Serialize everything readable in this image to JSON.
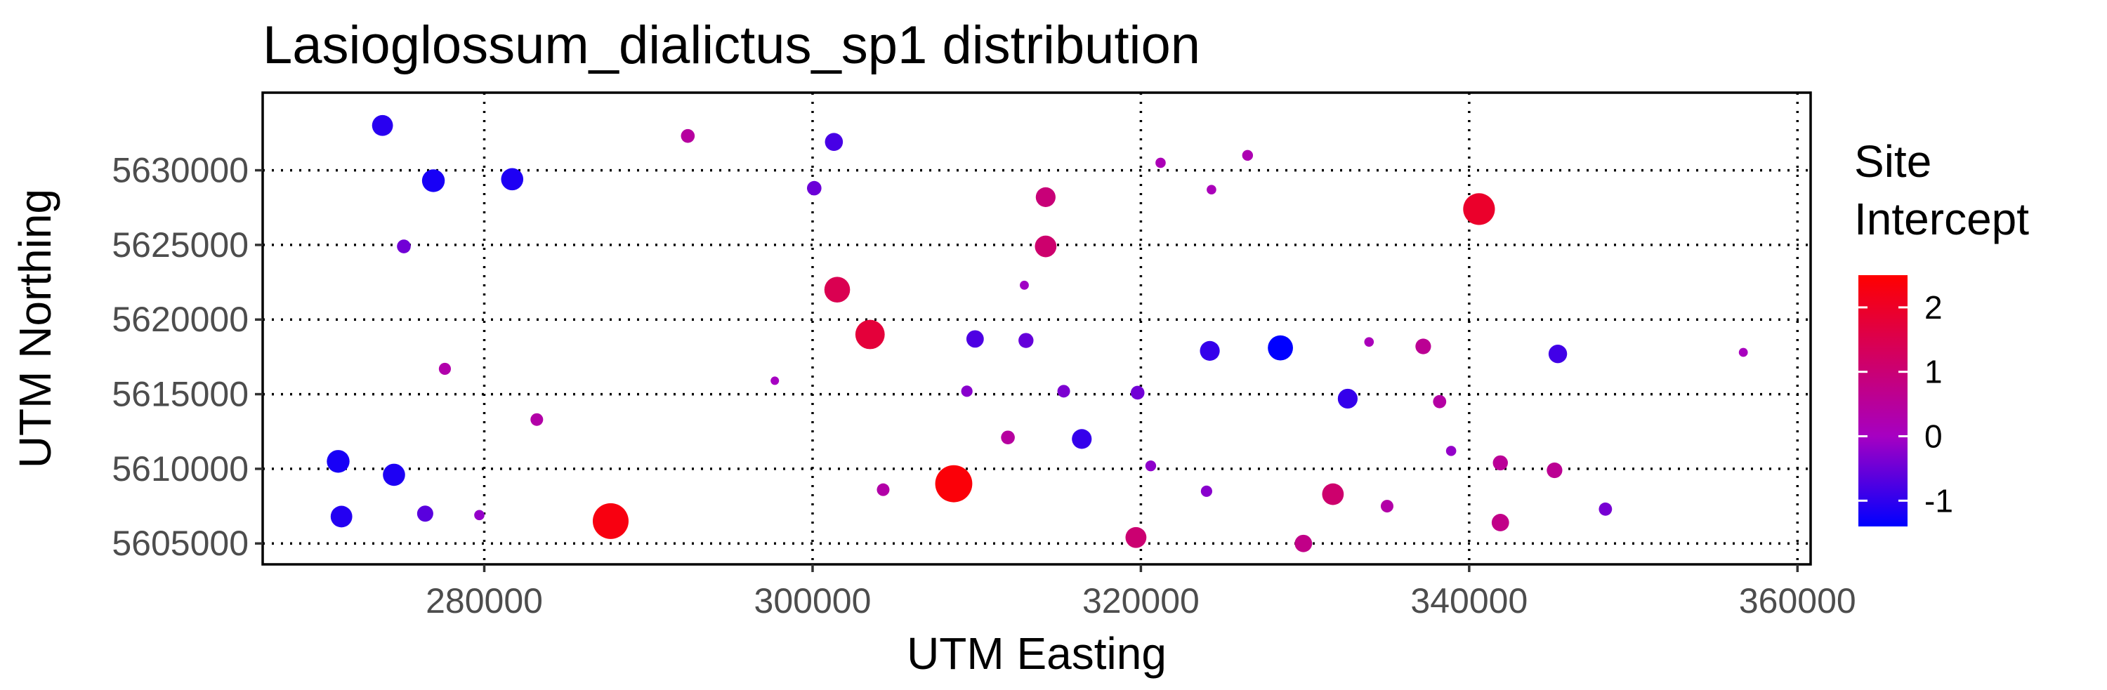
{
  "chart_data": {
    "type": "scatter",
    "title": "Lasioglossum_dialictus_sp1 distribution",
    "xlabel": "UTM Easting",
    "ylabel": "UTM Northing",
    "xlim": [
      266500,
      360800
    ],
    "ylim": [
      5603600,
      5635200
    ],
    "x_ticks": [
      280000,
      300000,
      320000,
      340000,
      360000
    ],
    "y_ticks": [
      5605000,
      5610000,
      5615000,
      5620000,
      5625000,
      5630000
    ],
    "x_tick_labels": [
      "280000",
      "300000",
      "320000",
      "340000",
      "360000"
    ],
    "y_tick_labels": [
      "5605000",
      "5610000",
      "5615000",
      "5620000",
      "5625000",
      "5630000"
    ],
    "grid": true,
    "legend": {
      "title_lines": [
        "Site",
        "Intercept"
      ],
      "position": "right",
      "colors": {
        "low": "#0000ff",
        "mid": "#a600c2",
        "high": "#ff0000"
      },
      "range": [
        -1.4,
        2.5
      ],
      "ticks": [
        2,
        1,
        0,
        -1
      ],
      "tick_labels": [
        "2",
        "1",
        "0",
        "-1"
      ]
    },
    "size_note": "point size scales with |site intercept|",
    "points": [
      {
        "x": 273800,
        "y": 5633000,
        "value": -1.05
      },
      {
        "x": 276900,
        "y": 5629300,
        "value": -1.2
      },
      {
        "x": 281700,
        "y": 5629400,
        "value": -1.15
      },
      {
        "x": 292400,
        "y": 5632300,
        "value": 0.45
      },
      {
        "x": 301300,
        "y": 5631900,
        "value": -0.8
      },
      {
        "x": 300100,
        "y": 5628800,
        "value": -0.5
      },
      {
        "x": 321200,
        "y": 5630500,
        "value": 0.15
      },
      {
        "x": 326500,
        "y": 5631000,
        "value": 0.2
      },
      {
        "x": 324300,
        "y": 5628700,
        "value": 0.1
      },
      {
        "x": 314200,
        "y": 5628200,
        "value": 0.95
      },
      {
        "x": 340600,
        "y": 5627400,
        "value": 1.95
      },
      {
        "x": 275100,
        "y": 5624900,
        "value": -0.45
      },
      {
        "x": 314200,
        "y": 5624900,
        "value": 1.1
      },
      {
        "x": 301500,
        "y": 5622000,
        "value": 1.45
      },
      {
        "x": 312900,
        "y": 5622300,
        "value": -0.05
      },
      {
        "x": 303500,
        "y": 5619000,
        "value": 1.75
      },
      {
        "x": 309900,
        "y": 5618700,
        "value": -0.75
      },
      {
        "x": 313000,
        "y": 5618600,
        "value": -0.55
      },
      {
        "x": 324200,
        "y": 5617900,
        "value": -0.95
      },
      {
        "x": 328500,
        "y": 5618100,
        "value": -1.4
      },
      {
        "x": 333900,
        "y": 5618500,
        "value": 0.1
      },
      {
        "x": 337200,
        "y": 5618200,
        "value": 0.6
      },
      {
        "x": 345400,
        "y": 5617700,
        "value": -0.85
      },
      {
        "x": 356700,
        "y": 5617800,
        "value": 0.05
      },
      {
        "x": 277600,
        "y": 5616700,
        "value": 0.3
      },
      {
        "x": 297700,
        "y": 5615900,
        "value": 0.0
      },
      {
        "x": 309400,
        "y": 5615200,
        "value": -0.25
      },
      {
        "x": 315300,
        "y": 5615200,
        "value": -0.35
      },
      {
        "x": 319800,
        "y": 5615100,
        "value": -0.45
      },
      {
        "x": 332600,
        "y": 5614700,
        "value": -0.95
      },
      {
        "x": 338200,
        "y": 5614500,
        "value": 0.4
      },
      {
        "x": 283200,
        "y": 5613300,
        "value": 0.35
      },
      {
        "x": 311900,
        "y": 5612100,
        "value": 0.45
      },
      {
        "x": 316400,
        "y": 5612000,
        "value": -0.95
      },
      {
        "x": 338900,
        "y": 5611200,
        "value": -0.15
      },
      {
        "x": 271100,
        "y": 5610500,
        "value": -1.2
      },
      {
        "x": 274500,
        "y": 5609600,
        "value": -1.15
      },
      {
        "x": 320600,
        "y": 5610200,
        "value": -0.2
      },
      {
        "x": 341900,
        "y": 5610400,
        "value": 0.55
      },
      {
        "x": 345200,
        "y": 5609900,
        "value": 0.6
      },
      {
        "x": 308600,
        "y": 5609000,
        "value": 2.4
      },
      {
        "x": 304300,
        "y": 5608600,
        "value": 0.35
      },
      {
        "x": 324000,
        "y": 5608500,
        "value": -0.25
      },
      {
        "x": 331700,
        "y": 5608300,
        "value": 1.1
      },
      {
        "x": 335000,
        "y": 5607500,
        "value": 0.35
      },
      {
        "x": 348300,
        "y": 5607300,
        "value": -0.4
      },
      {
        "x": 271300,
        "y": 5606800,
        "value": -1.1
      },
      {
        "x": 276400,
        "y": 5607000,
        "value": -0.65
      },
      {
        "x": 279700,
        "y": 5606900,
        "value": -0.15
      },
      {
        "x": 287700,
        "y": 5606500,
        "value": 2.3
      },
      {
        "x": 341900,
        "y": 5606400,
        "value": 0.75
      },
      {
        "x": 319700,
        "y": 5605400,
        "value": 1.05
      },
      {
        "x": 329900,
        "y": 5605000,
        "value": 0.75
      }
    ]
  }
}
